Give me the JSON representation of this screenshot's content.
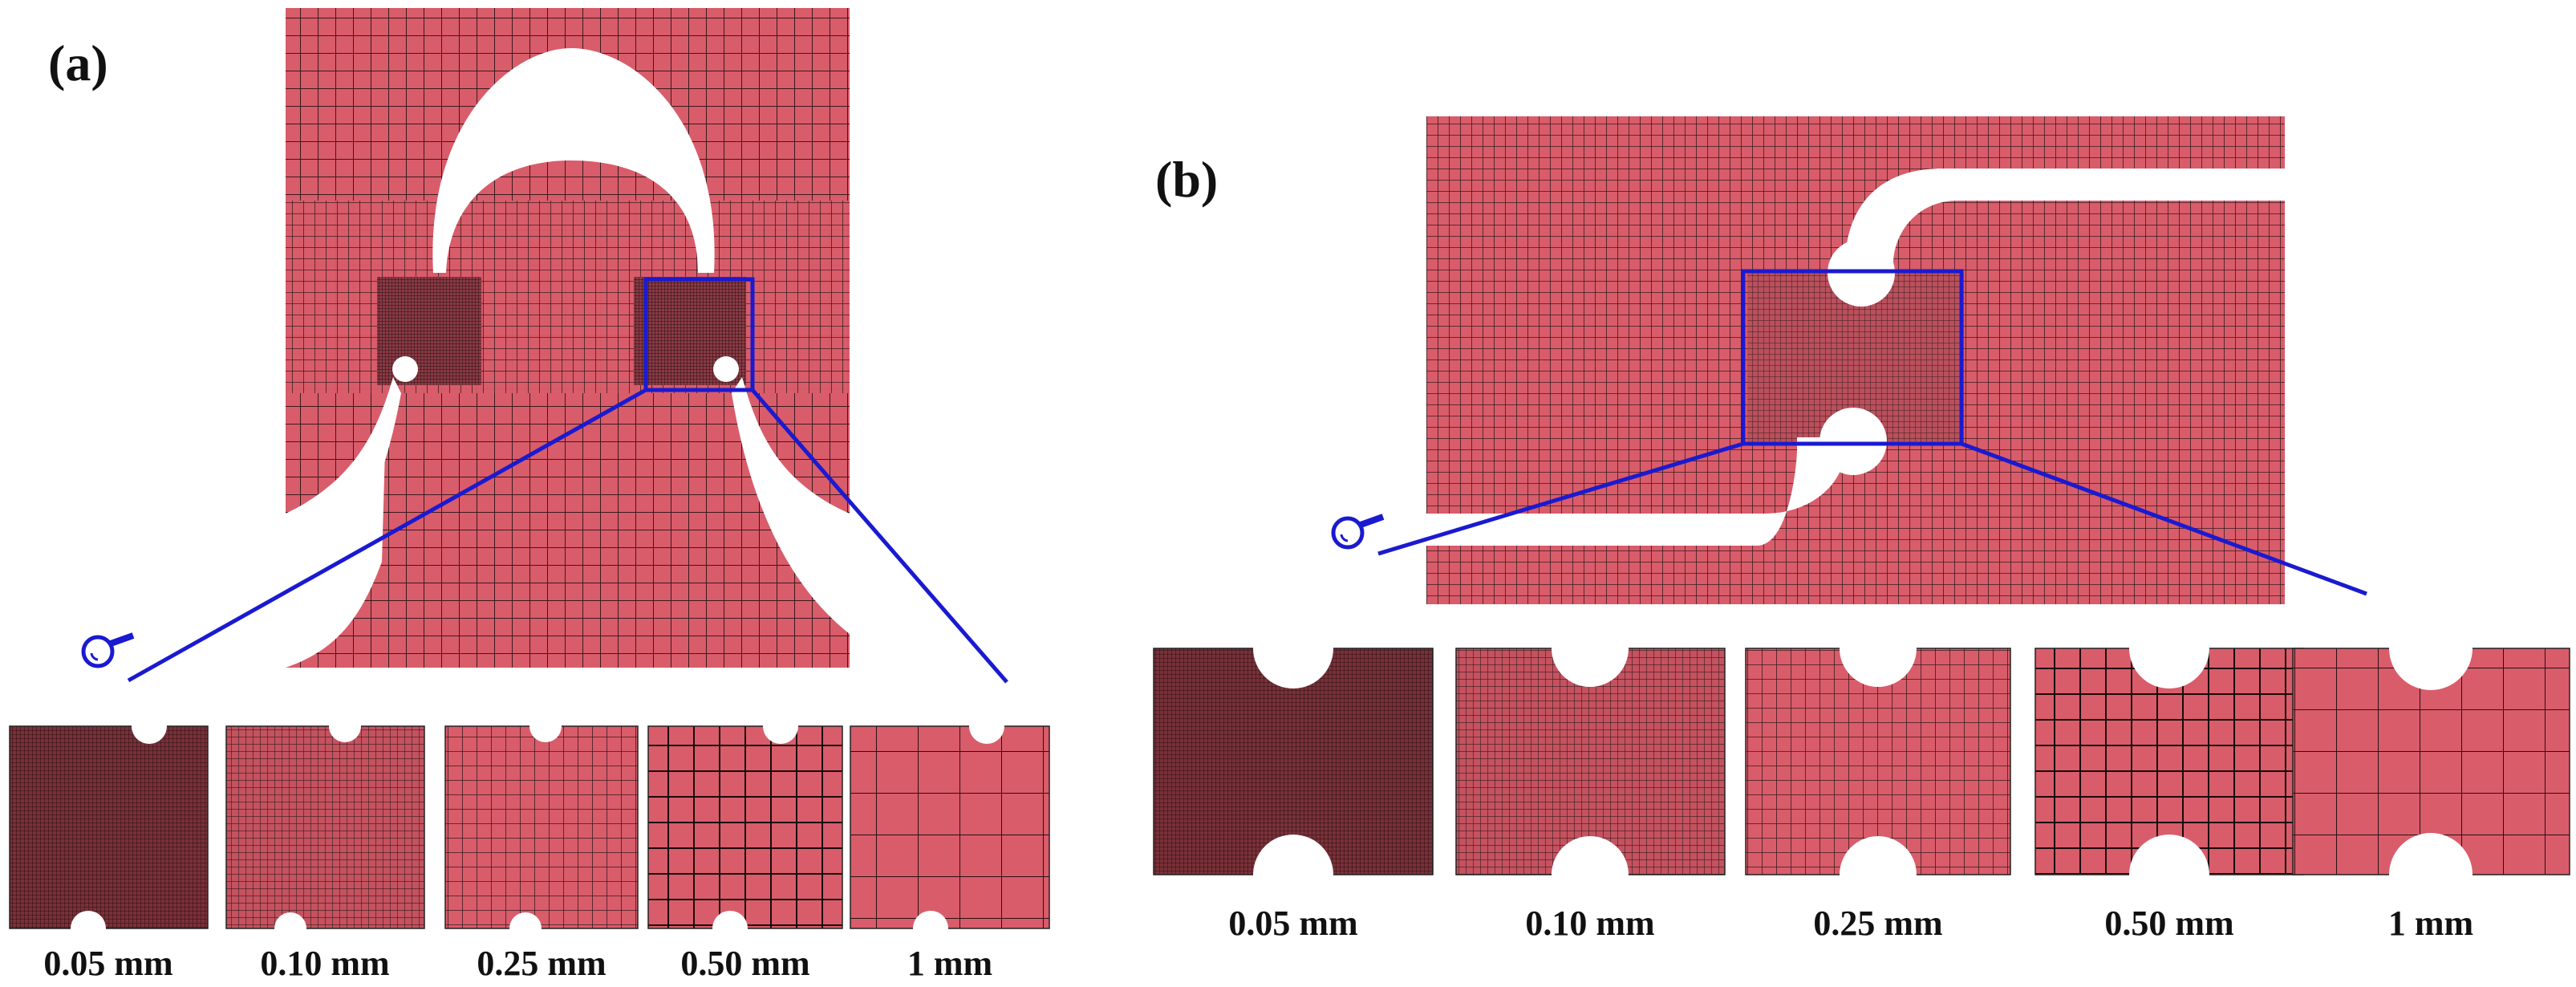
{
  "colors": {
    "mesh_fill": "#D95C6A",
    "mesh_line": "#3a1a1e",
    "zoom_box": "#1a1ad0",
    "background": "#ffffff"
  },
  "panel_a": {
    "label": "(a)",
    "probe_icon": "magnifier-icon",
    "mesh_sizes": [
      "0.05 mm",
      "0.10 mm",
      "0.25 mm",
      "0.50 mm",
      "1 mm"
    ]
  },
  "panel_b": {
    "label": "(b)",
    "probe_icon": "magnifier-icon",
    "mesh_sizes": [
      "0.05 mm",
      "0.10 mm",
      "0.25 mm",
      "0.50 mm",
      "1 mm"
    ]
  }
}
